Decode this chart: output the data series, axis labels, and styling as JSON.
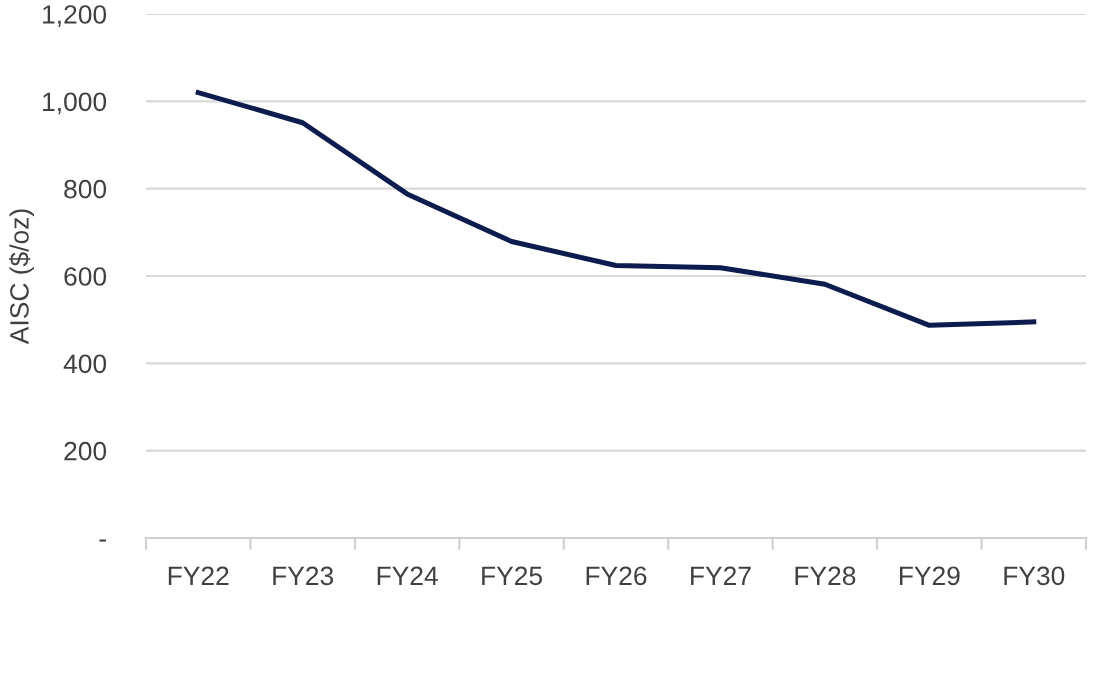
{
  "chart_data": {
    "type": "line",
    "ylabel": "AISC ($/oz)",
    "categories": [
      "FY22",
      "FY23",
      "FY24",
      "FY25",
      "FY26",
      "FY27",
      "FY28",
      "FY29",
      "FY30"
    ],
    "series": [
      {
        "color": "#0c1c4e",
        "values": [
          1020,
          951,
          788,
          679,
          624,
          619,
          581,
          487,
          495
        ]
      }
    ],
    "ylim": [
      0,
      1200
    ],
    "yticks": [
      {
        "value": 0,
        "label": "-"
      },
      200,
      400,
      600,
      800,
      {
        "value": 1000,
        "label": "1,000"
      },
      {
        "value": 1200,
        "label": "1,200"
      }
    ],
    "grid": "y",
    "legend": false,
    "marker": "none",
    "line_style": "solid"
  }
}
